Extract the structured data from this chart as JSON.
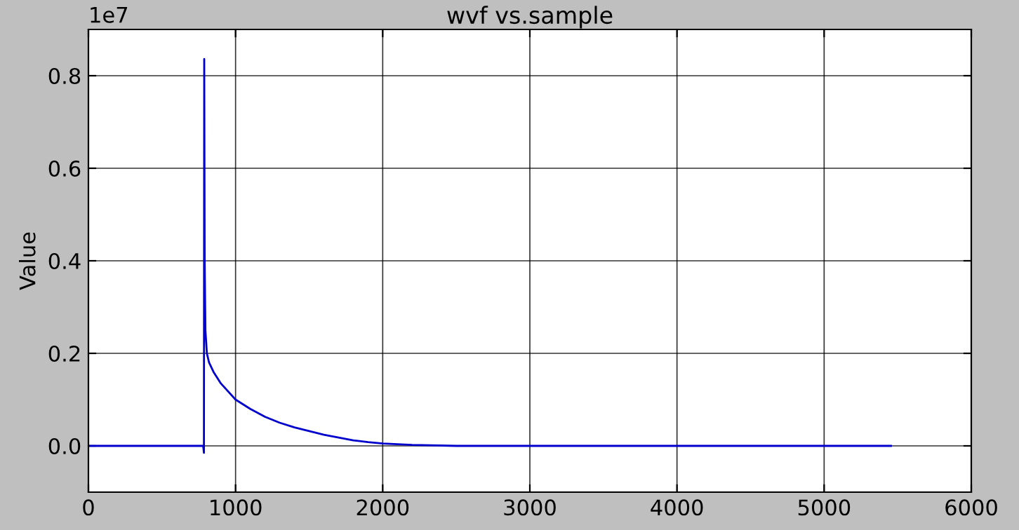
{
  "chart_data": {
    "type": "line",
    "title": "wvf vs.sample",
    "ylabel": "Value",
    "annotations": [
      "1e7"
    ],
    "x": [
      0,
      780,
      785,
      787,
      790,
      795,
      805,
      820,
      850,
      900,
      1000,
      1100,
      1200,
      1300,
      1400,
      1500,
      1600,
      1700,
      1800,
      1900,
      2000,
      2200,
      2500,
      3000,
      5454
    ],
    "series": [
      {
        "color": "#0000cc",
        "values": [
          0,
          0,
          -0.015,
          0.836,
          0.4,
          0.25,
          0.2,
          0.18,
          0.16,
          0.135,
          0.1,
          0.08,
          0.063,
          0.05,
          0.04,
          0.032,
          0.024,
          0.018,
          0.012,
          0.008,
          0.005,
          0.002,
          0,
          0,
          0
        ]
      }
    ],
    "xlim": [
      0,
      6000
    ],
    "xticks": [
      0,
      1000,
      2000,
      3000,
      4000,
      5000,
      6000
    ],
    "ylim": [
      -0.1,
      0.9
    ],
    "yticks": [
      {
        "value": 0,
        "label": "0.0"
      },
      0.2,
      0.4,
      0.6,
      0.8
    ],
    "grid": true,
    "marker": "none",
    "line_style": "solid"
  }
}
